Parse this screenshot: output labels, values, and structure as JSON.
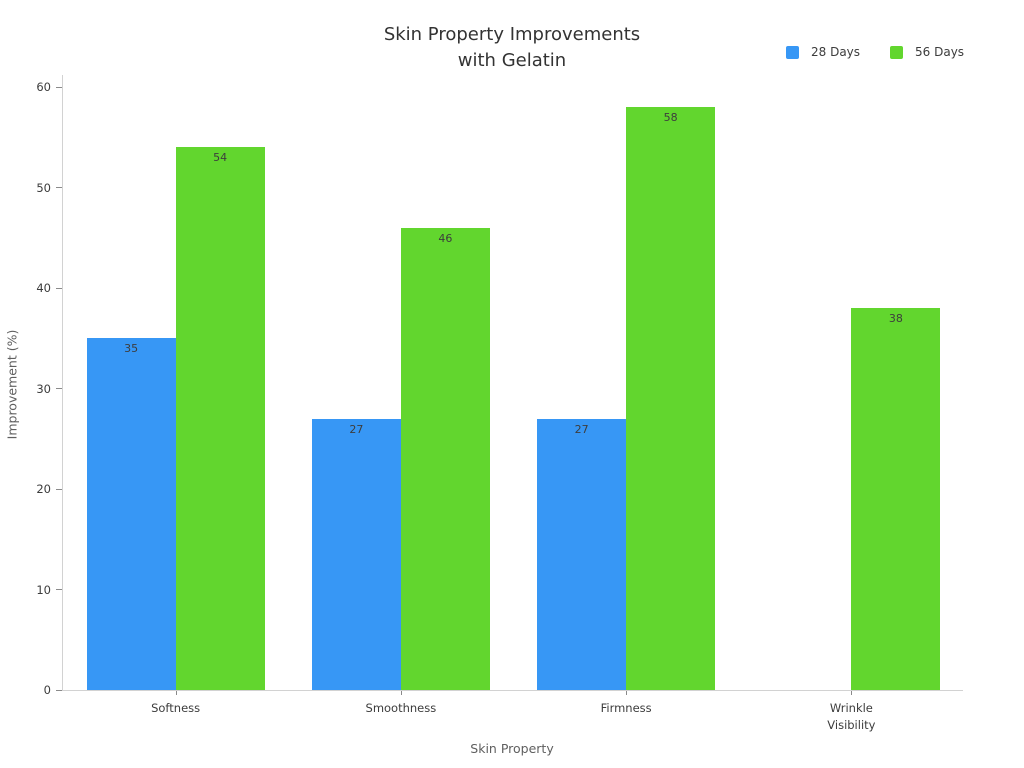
{
  "chart_data": {
    "type": "bar",
    "title": "Skin Property Improvements\nwith Gelatin",
    "xlabel": "Skin Property",
    "ylabel": "Improvement (%)",
    "categories": [
      "Softness",
      "Smoothness",
      "Firmness",
      "Wrinkle\nVisibility"
    ],
    "series": [
      {
        "name": "28 Days",
        "color": "#3797f5",
        "values": [
          35,
          27,
          27,
          null
        ]
      },
      {
        "name": "56 Days",
        "color": "#62d62e",
        "values": [
          54,
          46,
          58,
          38
        ]
      }
    ],
    "bar_value_labels": true,
    "ylim": [
      0,
      60
    ],
    "yticks": [
      0,
      10,
      20,
      30,
      40,
      50,
      60
    ],
    "grid": false,
    "legend_position": "top-right",
    "background_color": "#ffffff"
  }
}
